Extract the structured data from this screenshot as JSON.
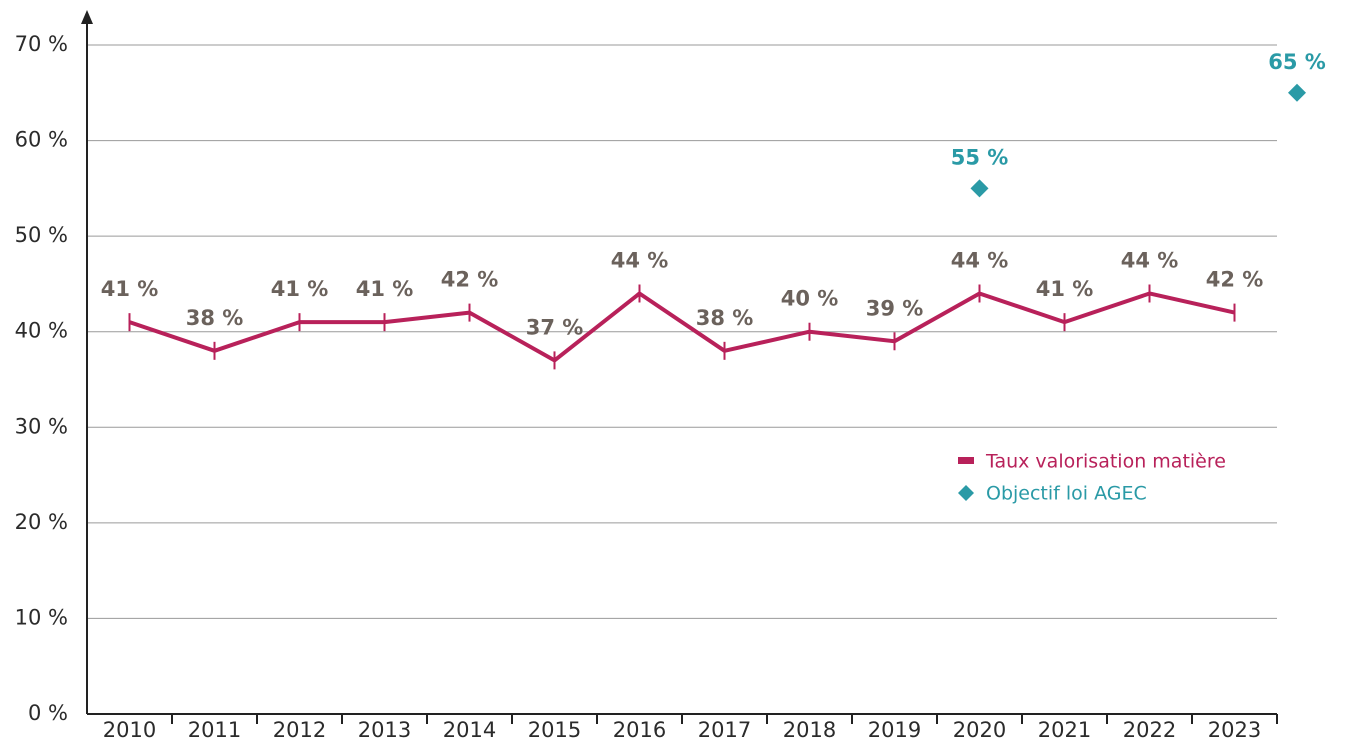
{
  "chart_data": {
    "type": "line",
    "categories": [
      "2010",
      "2011",
      "2012",
      "2013",
      "2014",
      "2015",
      "2016",
      "2017",
      "2018",
      "2019",
      "2020",
      "2021",
      "2022",
      "2023",
      null
    ],
    "series": [
      {
        "name": "Taux valorisation matière",
        "color": "#b8215a",
        "values": [
          41,
          38,
          41,
          41,
          42,
          37,
          44,
          38,
          40,
          39,
          44,
          41,
          44,
          42,
          null
        ],
        "value_labels": [
          "41 %",
          "38 %",
          "41 %",
          "41 %",
          "42 %",
          "37 %",
          "44 %",
          "38 %",
          "40 %",
          "39 %",
          "44 %",
          "41 %",
          "44 %",
          "42 %",
          null
        ]
      },
      {
        "name": "Objectif loi AGEC",
        "color": "#2a9aa6",
        "marker": "diamond",
        "values": [
          null,
          null,
          null,
          null,
          null,
          null,
          null,
          null,
          null,
          null,
          55,
          null,
          null,
          null,
          65
        ],
        "value_labels": [
          null,
          null,
          null,
          null,
          null,
          null,
          null,
          null,
          null,
          null,
          "55 %",
          null,
          null,
          null,
          "65 %"
        ]
      }
    ],
    "ylim": [
      0,
      70
    ],
    "yticks": [
      {
        "value": 0,
        "label": "0 %"
      },
      {
        "value": 10,
        "label": "10 %"
      },
      {
        "value": 20,
        "label": "20 %"
      },
      {
        "value": 30,
        "label": "30 %"
      },
      {
        "value": 40,
        "label": "40 %"
      },
      {
        "value": 50,
        "label": "50 %"
      },
      {
        "value": 60,
        "label": "60 %"
      },
      {
        "value": 70,
        "label": "70 %"
      }
    ],
    "grid": true,
    "legend": "center-right",
    "label_color": "#6b625c"
  }
}
